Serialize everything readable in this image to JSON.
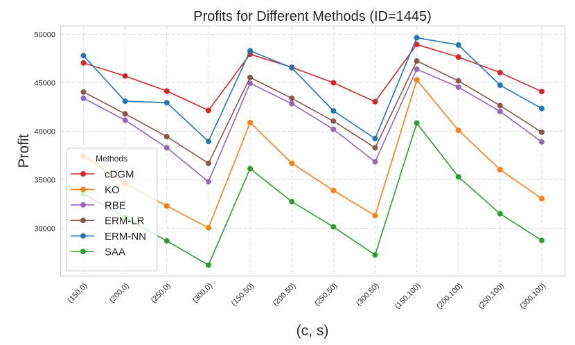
{
  "chart_data": {
    "type": "line",
    "title": "Profits for Different Methods (ID=1445)",
    "xlabel": "(c, s)",
    "ylabel": "Profit",
    "categories": [
      "(150,0)",
      "(200,0)",
      "(250,0)",
      "(300,0)",
      "(150,50)",
      "(200,50)",
      "(250,50)",
      "(300,50)",
      "(150,100)",
      "(200,100)",
      "(250,100)",
      "(300,100)"
    ],
    "ylim": [
      25200,
      50900
    ],
    "yticks": [
      30000,
      35000,
      40000,
      45000,
      50000
    ],
    "ytick_labels": [
      "30000",
      "35000",
      "40000",
      "45000",
      "50000"
    ],
    "grid": true,
    "legend": {
      "title": "Methods",
      "placement": "lower-left"
    },
    "series": [
      {
        "name": "cDGM",
        "color": "#d62728",
        "values": [
          47050,
          45700,
          44150,
          42150,
          47950,
          46600,
          45000,
          43050,
          48950,
          47650,
          46050,
          44100
        ]
      },
      {
        "name": "KO",
        "color": "#ff7f0e",
        "values": [
          37450,
          34600,
          32300,
          30050,
          40900,
          36700,
          33900,
          31300,
          45300,
          40100,
          36050,
          33050
        ]
      },
      {
        "name": "RBE",
        "color": "#9467bd",
        "values": [
          43400,
          41150,
          38300,
          34800,
          44950,
          42850,
          40200,
          36850,
          46400,
          44550,
          42050,
          38900
        ]
      },
      {
        "name": "ERM-LR",
        "color": "#8c564b",
        "values": [
          44050,
          41800,
          39450,
          36700,
          45550,
          43400,
          41050,
          38300,
          47250,
          45200,
          42650,
          39900
        ]
      },
      {
        "name": "ERM-NN",
        "color": "#1f77b4",
        "values": [
          47800,
          43100,
          42950,
          38950,
          48300,
          46550,
          42100,
          39250,
          49650,
          48900,
          44750,
          42350
        ]
      },
      {
        "name": "SAA",
        "color": "#2ca02c",
        "values": [
          33550,
          31100,
          28700,
          26200,
          36150,
          32750,
          30150,
          27250,
          40850,
          35300,
          31500,
          28750
        ]
      }
    ]
  }
}
